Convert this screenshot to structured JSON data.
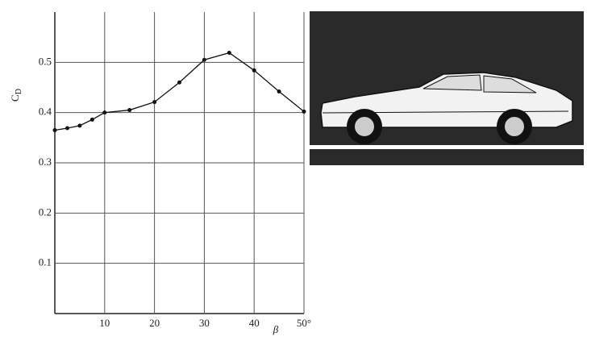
{
  "chart_data": {
    "type": "line",
    "x_label": "β",
    "y_label": {
      "main": "C",
      "sub": "D"
    },
    "x": [
      0,
      2.5,
      5,
      7.5,
      10,
      15,
      20,
      25,
      30,
      35,
      40,
      45,
      50
    ],
    "series": [
      {
        "color": "#111111",
        "values": [
          0.365,
          0.369,
          0.374,
          0.386,
          0.4,
          0.405,
          0.421,
          0.46,
          0.505,
          0.519,
          0.484,
          0.442,
          0.402
        ]
      }
    ],
    "xlim": [
      0,
      50
    ],
    "ylim": [
      0,
      0.6
    ],
    "xticks": [
      10,
      20,
      30,
      40,
      {
        "value": 50,
        "label": "50°"
      }
    ],
    "yticks": [
      0.1,
      0.2,
      0.3,
      0.4,
      0.5
    ],
    "grid": true
  }
}
